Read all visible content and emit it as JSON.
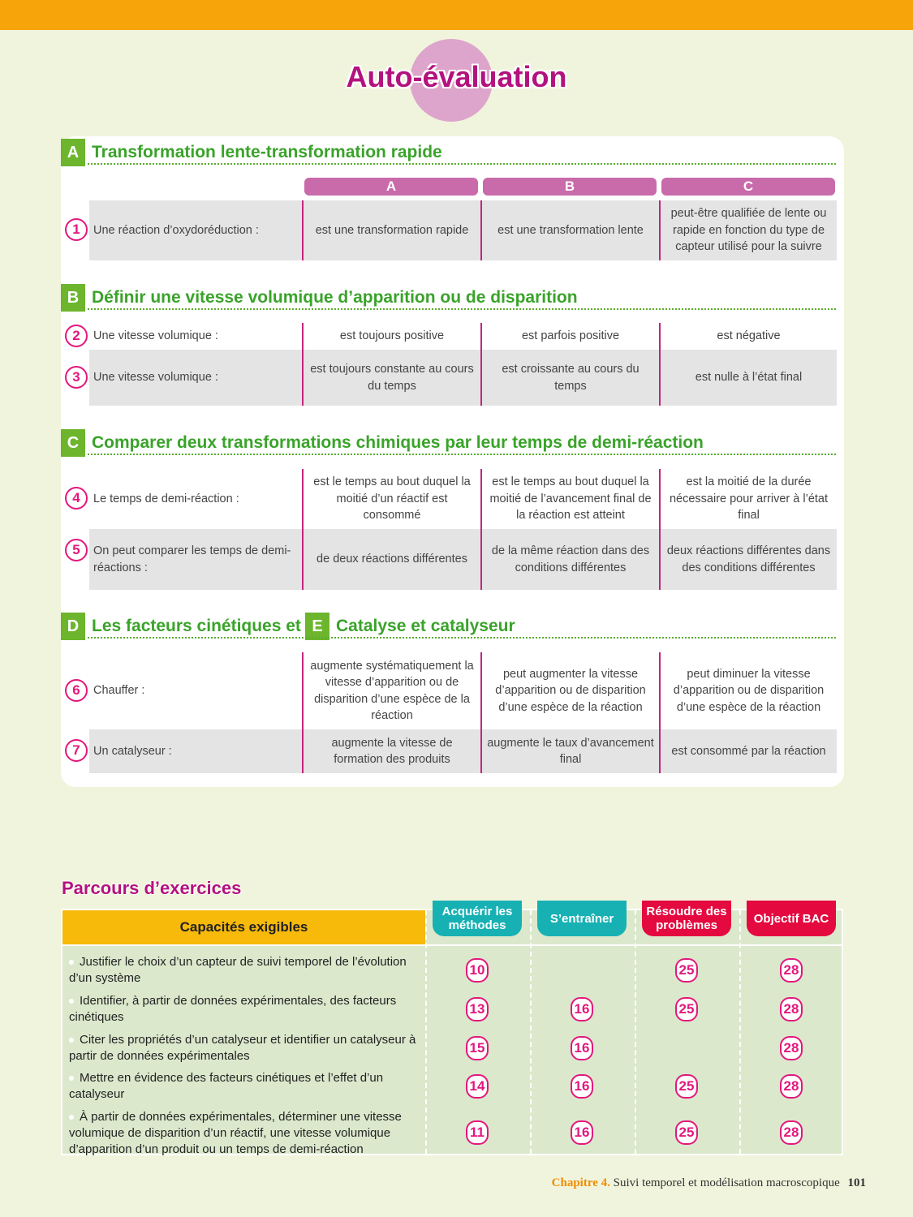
{
  "title": "Auto-évaluation",
  "columns": [
    "A",
    "B",
    "C"
  ],
  "sections": [
    {
      "letter": "A",
      "title": "Transformation lente-transformation rapide"
    },
    {
      "letter": "B",
      "title": "Définir une vitesse volumique d’apparition ou de disparition"
    },
    {
      "letter": "C",
      "title": "Comparer deux transformations chimiques par leur temps de demi-réaction"
    },
    {
      "letter": "D",
      "title": "Les facteurs cinétiques et"
    },
    {
      "letter": "E",
      "title": "Catalyse et catalyseur"
    }
  ],
  "questions": [
    {
      "num": "1",
      "label": "Une réaction d’oxydoréduction :",
      "a": "est une transformation rapide",
      "b": "est une transformation lente",
      "c": "peut-être qualifiée de lente ou rapide en fonction du type de capteur utilisé pour la suivre"
    },
    {
      "num": "2",
      "label": "Une vitesse volumique :",
      "a": "est toujours positive",
      "b": "est parfois positive",
      "c": "est négative"
    },
    {
      "num": "3",
      "label": "Une vitesse volumique :",
      "a": "est toujours constante au cours du temps",
      "b": "est croissante au cours du temps",
      "c": "est nulle à l’état final"
    },
    {
      "num": "4",
      "label": "Le temps de demi-réaction :",
      "a": "est le temps au bout duquel la moitié d’un réactif est consommé",
      "b": "est le temps au bout duquel la moitié de l’avancement final de la réaction est atteint",
      "c": "est la moitié de la durée nécessaire pour arriver à l’état final"
    },
    {
      "num": "5",
      "label": "On peut comparer les temps de demi-réactions :",
      "a": "de deux réactions différentes",
      "b": "de la même réaction dans des conditions différentes",
      "c": "deux réactions différentes dans des conditions différentes"
    },
    {
      "num": "6",
      "label": "Chauffer :",
      "a": "augmente systématiquement la vitesse d’apparition ou de disparition d’une espèce de la réaction",
      "b": "peut augmenter la vitesse d’apparition ou de disparition d’une espèce de la réaction",
      "c": "peut diminuer la vitesse d’apparition ou de disparition d’une espèce de la réaction"
    },
    {
      "num": "7",
      "label": "Un catalyseur :",
      "a": "augmente la vitesse de formation des produits",
      "b": "augmente le taux d’avancement final",
      "c": "est consommé par la réaction"
    }
  ],
  "parcours": {
    "title": "Parcours d’exercices",
    "header": "Capacités exigibles",
    "tabs": [
      "Acquérir les méthodes",
      "S’entraîner",
      "Résoudre des problèmes",
      "Objectif BAC"
    ],
    "tab_colors": [
      "#17b1b4",
      "#17b1b4",
      "#e4093f",
      "#e4093f"
    ],
    "rows": [
      {
        "text": "Justifier le choix d’un capteur de suivi temporel de l’évolution d’un système",
        "ex": [
          "10",
          "",
          "25",
          "28"
        ]
      },
      {
        "text": "Identifier, à partir de données expérimentales, des facteurs cinétiques",
        "ex": [
          "13",
          "16",
          "25",
          "28"
        ]
      },
      {
        "text": "Citer les propriétés d’un catalyseur et identifier un catalyseur à partir de données expérimentales",
        "ex": [
          "15",
          "16",
          "",
          "28"
        ]
      },
      {
        "text": "Mettre en évidence des facteurs cinétiques et l’effet d’un catalyseur",
        "ex": [
          "14",
          "16",
          "25",
          "28"
        ]
      },
      {
        "text": "À partir de données expérimentales, déterminer une vitesse volumique de disparition d’un réactif, une vitesse volumique d’apparition d’un produit ou un temps de demi-réaction",
        "ex": [
          "11",
          "16",
          "25",
          "28"
        ]
      }
    ]
  },
  "footer": {
    "chapter": "Chapitre 4.",
    "title": "Suivi temporel et modélisation macroscopique",
    "page": "101"
  }
}
